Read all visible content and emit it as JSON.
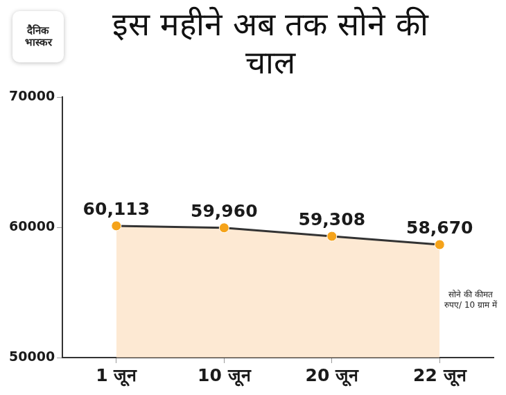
{
  "logo": "दैनिक भास्कर",
  "chart_data": {
    "type": "line",
    "title": "इस महीने अब तक सोने की चाल",
    "categories": [
      "1 जून",
      "10 जून",
      "20 जून",
      "22 जून"
    ],
    "values": [
      60113,
      59960,
      59308,
      58670
    ],
    "value_labels": [
      "60,113",
      "59,960",
      "59,308",
      "58,670"
    ],
    "data_labels": true,
    "color": "#333333",
    "marker": "circle",
    "annotation": "सोने की कीमत रुपए/ 10 ग्राम में",
    "ylim": [
      50000,
      70000
    ],
    "yticks": [
      50000,
      60000,
      70000
    ],
    "grid": false
  }
}
